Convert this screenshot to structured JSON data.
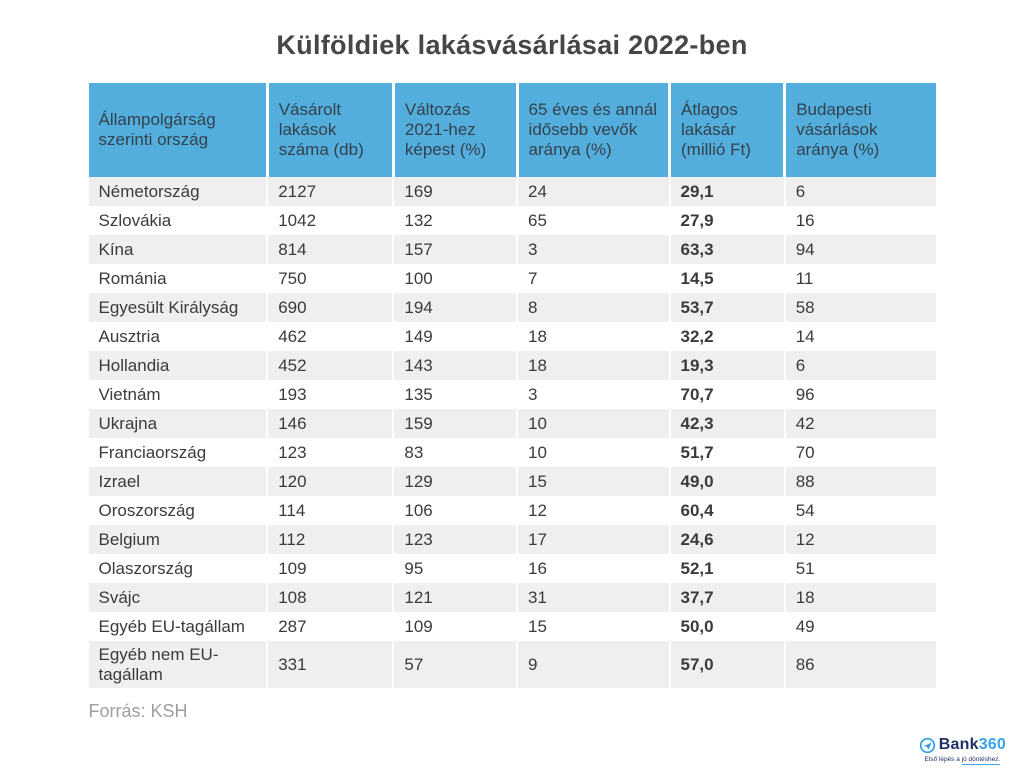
{
  "page": {
    "title": "Külföldiek lakásvásárlásai 2022-ben",
    "source_note": "Forrás: KSH"
  },
  "chart_data": {
    "type": "table",
    "title": "Külföldiek lakásvásárlásai 2022-ben",
    "source": "Forrás: KSH",
    "columns": [
      "Állampolgárság szerinti ország",
      "Vásárolt lakások száma (db)",
      "Változás 2021-hez képest (%)",
      "65 éves és annál idősebb vevők aránya (%)",
      "Átlagos lakásár (millió Ft)",
      "Budapesti vásárlások aránya (%)"
    ],
    "rows": [
      [
        "Németország",
        "2127",
        "169",
        "24",
        "29,1",
        "6"
      ],
      [
        "Szlovákia",
        "1042",
        "132",
        "65",
        "27,9",
        "16"
      ],
      [
        "Kína",
        "814",
        "157",
        "3",
        "63,3",
        "94"
      ],
      [
        "Románia",
        "750",
        "100",
        "7",
        "14,5",
        "11"
      ],
      [
        "Egyesült Királyság",
        "690",
        "194",
        "8",
        "53,7",
        "58"
      ],
      [
        "Ausztria",
        "462",
        "149",
        "18",
        "32,2",
        "14"
      ],
      [
        "Hollandia",
        "452",
        "143",
        "18",
        "19,3",
        "6"
      ],
      [
        "Vietnám",
        "193",
        "135",
        "3",
        "70,7",
        "96"
      ],
      [
        "Ukrajna",
        "146",
        "159",
        "10",
        "42,3",
        "42"
      ],
      [
        "Franciaország",
        "123",
        "83",
        "10",
        "51,7",
        "70"
      ],
      [
        "Izrael",
        "120",
        "129",
        "15",
        "49,0",
        "88"
      ],
      [
        "Oroszország",
        "114",
        "106",
        "12",
        "60,4",
        "54"
      ],
      [
        "Belgium",
        "112",
        "123",
        "17",
        "24,6",
        "12"
      ],
      [
        "Olaszország",
        "109",
        "95",
        "16",
        "52,1",
        "51"
      ],
      [
        "Svájc",
        "108",
        "121",
        "31",
        "37,7",
        "18"
      ],
      [
        "Egyéb EU-tagállam",
        "287",
        "109",
        "15",
        "50,0",
        "49"
      ],
      [
        "Egyéb nem EU-tagállam",
        "331",
        "57",
        "9",
        "57,0",
        "86"
      ]
    ],
    "layout_hints": {
      "zebra_striping": true,
      "first_row_shaded": true,
      "bold_column": "Átlagos lakásár (millió Ft)",
      "header_background": "#53aedd"
    }
  },
  "branding": {
    "name_part1": "Bank",
    "name_part2": "360",
    "tagline_start": "Első lépés a ",
    "tagline_underlined": "jó döntéshez."
  },
  "theme": {
    "header_bg": "#53aedd",
    "header_text": "#33424c",
    "row_alt_bg": "#efefef",
    "body_text": "#3b3b3b",
    "title_text": "#464646",
    "source_text": "#9e9e9e",
    "brand_navy": "#22306a",
    "brand_blue": "#36a3e8"
  }
}
